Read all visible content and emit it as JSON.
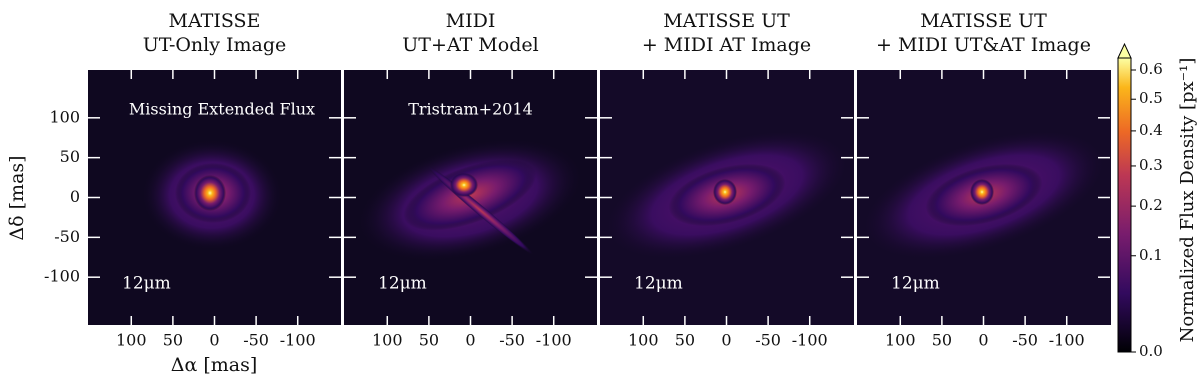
{
  "panels": [
    {
      "title": [
        "MATISSE",
        "UT-Only Image"
      ],
      "annotation": "Missing Extended Flux",
      "wavelength": "12μm"
    },
    {
      "title": [
        "MIDI",
        "UT+AT Model"
      ],
      "annotation": "Tristram+2014",
      "wavelength": "12μm"
    },
    {
      "title": [
        "MATISSE UT",
        "+ MIDI AT Image"
      ],
      "wavelength": "12μm"
    },
    {
      "title": [
        "MATISSE UT",
        "+ MIDI UT&AT Image"
      ],
      "wavelength": "12μm"
    }
  ],
  "x_label": "Δα [mas]",
  "y_label": "Δδ [mas]",
  "xlim": [
    152,
    -152
  ],
  "ylim": [
    -160,
    160
  ],
  "xticks": [
    100,
    50,
    0,
    -50,
    -100
  ],
  "yticks": [
    100,
    50,
    0,
    -50,
    -100
  ],
  "colorbar": {
    "label": "Normalized Flux Density [px⁻¹]",
    "lim": [
      0,
      0.62
    ],
    "scale_power": 0.6,
    "ticks": [
      {
        "value": 0,
        "label": "0.0"
      },
      0.1,
      0.2,
      0.3,
      0.4,
      0.5,
      0.6
    ]
  }
}
